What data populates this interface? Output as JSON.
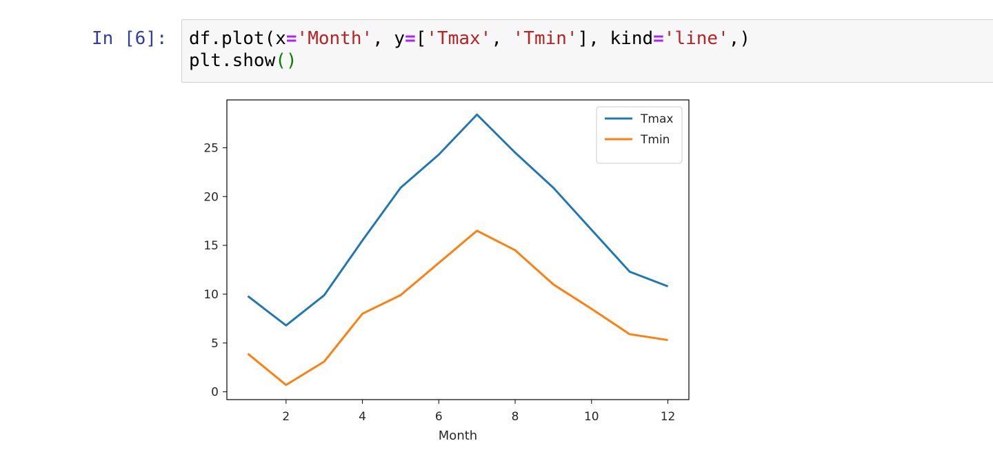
{
  "cell": {
    "prompt": "In [6]:",
    "code_lines": [
      [
        {
          "t": "df.plot(x",
          "k": "plain"
        },
        {
          "t": "=",
          "k": "op"
        },
        {
          "t": "'Month'",
          "k": "str"
        },
        {
          "t": ", y",
          "k": "plain"
        },
        {
          "t": "=",
          "k": "op"
        },
        {
          "t": "[",
          "k": "plain"
        },
        {
          "t": "'Tmax'",
          "k": "str"
        },
        {
          "t": ", ",
          "k": "plain"
        },
        {
          "t": "'Tmin'",
          "k": "str"
        },
        {
          "t": "], kind",
          "k": "plain"
        },
        {
          "t": "=",
          "k": "op"
        },
        {
          "t": "'line'",
          "k": "str"
        },
        {
          "t": ",)",
          "k": "plain"
        }
      ],
      [
        {
          "t": "plt.show",
          "k": "plain"
        },
        {
          "t": "()",
          "k": "par"
        }
      ]
    ]
  },
  "chart_data": {
    "type": "line",
    "xlabel": "Month",
    "ylabel": "",
    "x": [
      1,
      2,
      3,
      4,
      5,
      6,
      7,
      8,
      9,
      10,
      11,
      12
    ],
    "series": [
      {
        "name": "Tmax",
        "color": "#1f77b4",
        "values": [
          9.8,
          6.8,
          9.9,
          15.5,
          20.9,
          24.3,
          28.4,
          24.5,
          20.9,
          16.6,
          12.3,
          10.8
        ]
      },
      {
        "name": "Tmin",
        "color": "#ff7f0e",
        "values": [
          3.9,
          0.7,
          3.1,
          8.0,
          9.9,
          13.2,
          16.5,
          14.5,
          11.0,
          8.5,
          5.9,
          5.3
        ]
      }
    ],
    "xticks": [
      2,
      4,
      6,
      8,
      10,
      12
    ],
    "yticks": [
      0,
      5,
      10,
      15,
      20,
      25
    ],
    "xlim": [
      0.45,
      12.55
    ],
    "ylim": [
      -0.8,
      29.9
    ],
    "legend": "upper-right",
    "grid": false
  }
}
